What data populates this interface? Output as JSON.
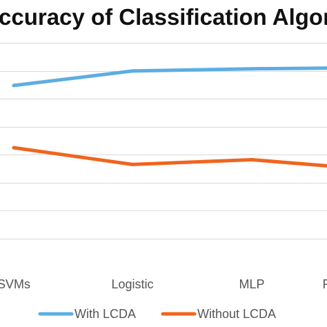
{
  "chart_data": {
    "type": "line",
    "title": "ccuracy of Classification Algorith",
    "categories": [
      "SVMs",
      "Logistic",
      "MLP",
      "R"
    ],
    "series": [
      {
        "name": "With LCDA",
        "color": "#5dade2",
        "values": [
          84.8,
          90.0,
          90.8,
          91.0
        ]
      },
      {
        "name": "Without LCDA",
        "color": "#f0651e",
        "values": [
          62.5,
          56.5,
          58.2,
          56.0
        ]
      }
    ],
    "ylim": [
      20,
      110
    ],
    "grid": true,
    "legend": "bottom"
  }
}
